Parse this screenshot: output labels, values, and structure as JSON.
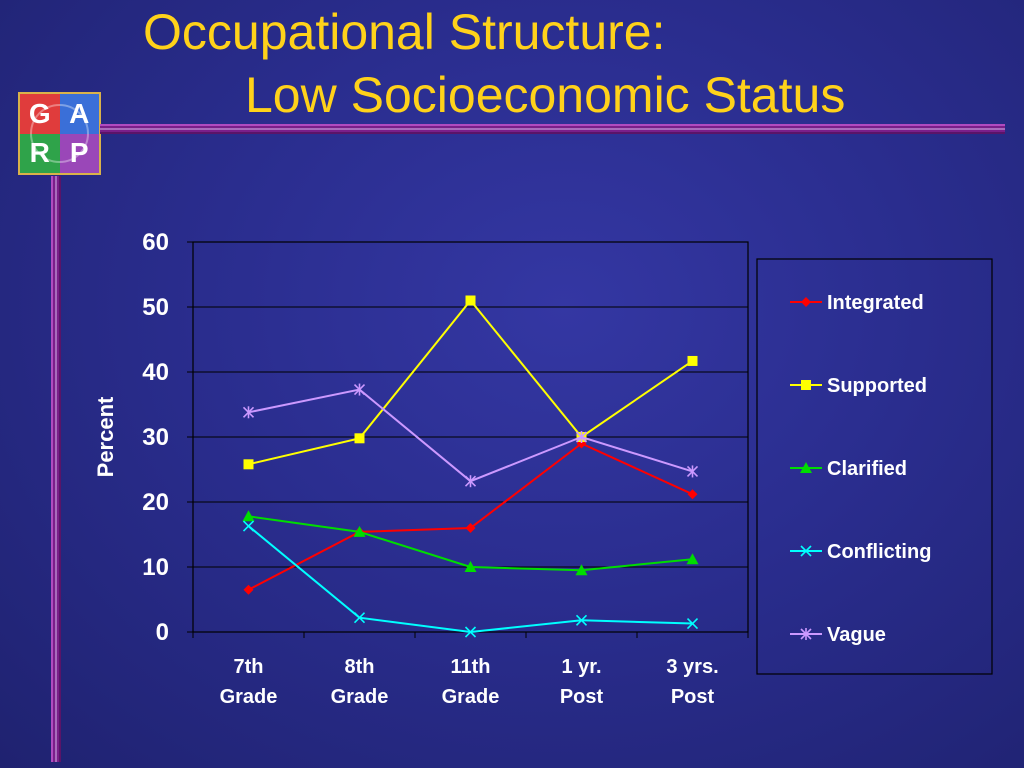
{
  "slide": {
    "title_line1": "Occupational Structure:",
    "title_line2": "Low Socioeconomic Status",
    "title_color": "#ffd21a",
    "background_color": "#2a2d8e"
  },
  "logo": {
    "letters": [
      "G",
      "A",
      "R",
      "P"
    ],
    "colors": [
      "#e03c3c",
      "#3a6fd8",
      "#2fa34a",
      "#9a47b8"
    ]
  },
  "chart_data": {
    "type": "line",
    "title": "",
    "xlabel": "",
    "ylabel": "Percent",
    "ylim": [
      0,
      60
    ],
    "yticks": [
      0,
      10,
      20,
      30,
      40,
      50,
      60
    ],
    "grid": "horizontal",
    "legend_position": "right",
    "categories": [
      [
        "7th",
        "Grade"
      ],
      [
        "8th",
        "Grade"
      ],
      [
        "11th",
        "Grade"
      ],
      [
        "1 yr.",
        "Post"
      ],
      [
        "3 yrs.",
        "Post"
      ]
    ],
    "series": [
      {
        "name": "Integrated",
        "color": "#ff0000",
        "marker": "diamond",
        "values": [
          6.5,
          15.4,
          16.0,
          29.0,
          21.2
        ]
      },
      {
        "name": "Supported",
        "color": "#ffff00",
        "marker": "square",
        "values": [
          25.8,
          29.8,
          51.0,
          30.0,
          41.7
        ]
      },
      {
        "name": "Clarified",
        "color": "#00dd00",
        "marker": "triangle",
        "values": [
          17.8,
          15.4,
          10.0,
          9.5,
          11.2
        ]
      },
      {
        "name": "Conflicting",
        "color": "#00ffff",
        "marker": "x",
        "values": [
          16.3,
          2.2,
          0.0,
          1.8,
          1.3
        ]
      },
      {
        "name": "Vague",
        "color": "#cc99ff",
        "marker": "asterisk",
        "values": [
          33.8,
          37.3,
          23.2,
          30.0,
          24.7
        ]
      }
    ]
  }
}
